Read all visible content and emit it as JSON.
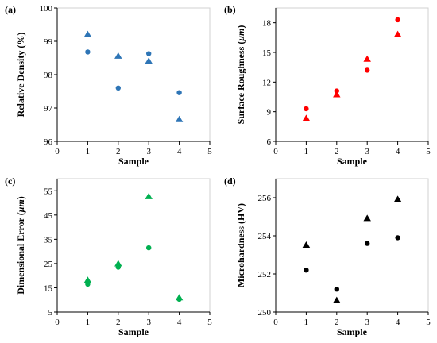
{
  "chart_data": [
    {
      "panel": "(a)",
      "type": "scatter",
      "xlabel": "Sample",
      "ylabel": "Relative Density (%)",
      "xlim": [
        0,
        5
      ],
      "ylim": [
        96,
        100
      ],
      "xticks": [
        0,
        1,
        2,
        3,
        4,
        5
      ],
      "yticks": [
        96,
        97,
        98,
        99,
        100
      ],
      "color": "#2E75B6",
      "series": [
        {
          "marker": "circle",
          "x": [
            1,
            2,
            3,
            4
          ],
          "y": [
            98.68,
            97.6,
            98.63,
            97.46
          ]
        },
        {
          "marker": "triangle",
          "x": [
            1,
            2,
            3,
            4
          ],
          "y": [
            99.2,
            98.55,
            98.4,
            96.65
          ]
        }
      ]
    },
    {
      "panel": "(b)",
      "type": "scatter",
      "xlabel": "Sample",
      "ylabel_parts": [
        "Surface Roughness (",
        "μm",
        ")"
      ],
      "xlim": [
        0,
        5
      ],
      "ylim": [
        6,
        19.5
      ],
      "xticks": [
        0,
        1,
        2,
        3,
        4,
        5
      ],
      "yticks": [
        6,
        9,
        12,
        15,
        18
      ],
      "color": "#FF0000",
      "series": [
        {
          "marker": "circle",
          "x": [
            1,
            2,
            3,
            4
          ],
          "y": [
            9.3,
            11.1,
            13.2,
            18.3
          ]
        },
        {
          "marker": "triangle",
          "x": [
            1,
            2,
            3,
            4
          ],
          "y": [
            8.3,
            10.7,
            14.3,
            16.8
          ]
        }
      ]
    },
    {
      "panel": "(c)",
      "type": "scatter",
      "xlabel": "Sample",
      "ylabel_parts": [
        "Dimensional Error (",
        "μm",
        ")"
      ],
      "xlim": [
        0,
        5
      ],
      "ylim": [
        5,
        60
      ],
      "xticks": [
        0,
        1,
        2,
        3,
        4,
        5
      ],
      "yticks": [
        5,
        15,
        25,
        35,
        45,
        55
      ],
      "color": "#00B050",
      "series": [
        {
          "marker": "circle",
          "x": [
            1,
            2,
            3,
            4
          ],
          "y": [
            16.5,
            23.5,
            31.5,
            10.3
          ]
        },
        {
          "marker": "triangle",
          "x": [
            1,
            2,
            3,
            4
          ],
          "y": [
            18.0,
            24.8,
            52.5,
            10.8
          ]
        }
      ]
    },
    {
      "panel": "(d)",
      "type": "scatter",
      "xlabel": "Sample",
      "ylabel": "Microhardness (HV)",
      "xlim": [
        0,
        5
      ],
      "ylim": [
        250,
        257
      ],
      "xticks": [
        0,
        1,
        2,
        3,
        4,
        5
      ],
      "yticks": [
        250,
        252,
        254,
        256
      ],
      "color": "#000000",
      "series": [
        {
          "marker": "circle",
          "x": [
            1,
            2,
            3,
            4
          ],
          "y": [
            252.2,
            251.2,
            253.6,
            253.9
          ]
        },
        {
          "marker": "triangle",
          "x": [
            1,
            2,
            3,
            4
          ],
          "y": [
            253.5,
            250.6,
            254.9,
            255.9
          ]
        }
      ]
    }
  ]
}
